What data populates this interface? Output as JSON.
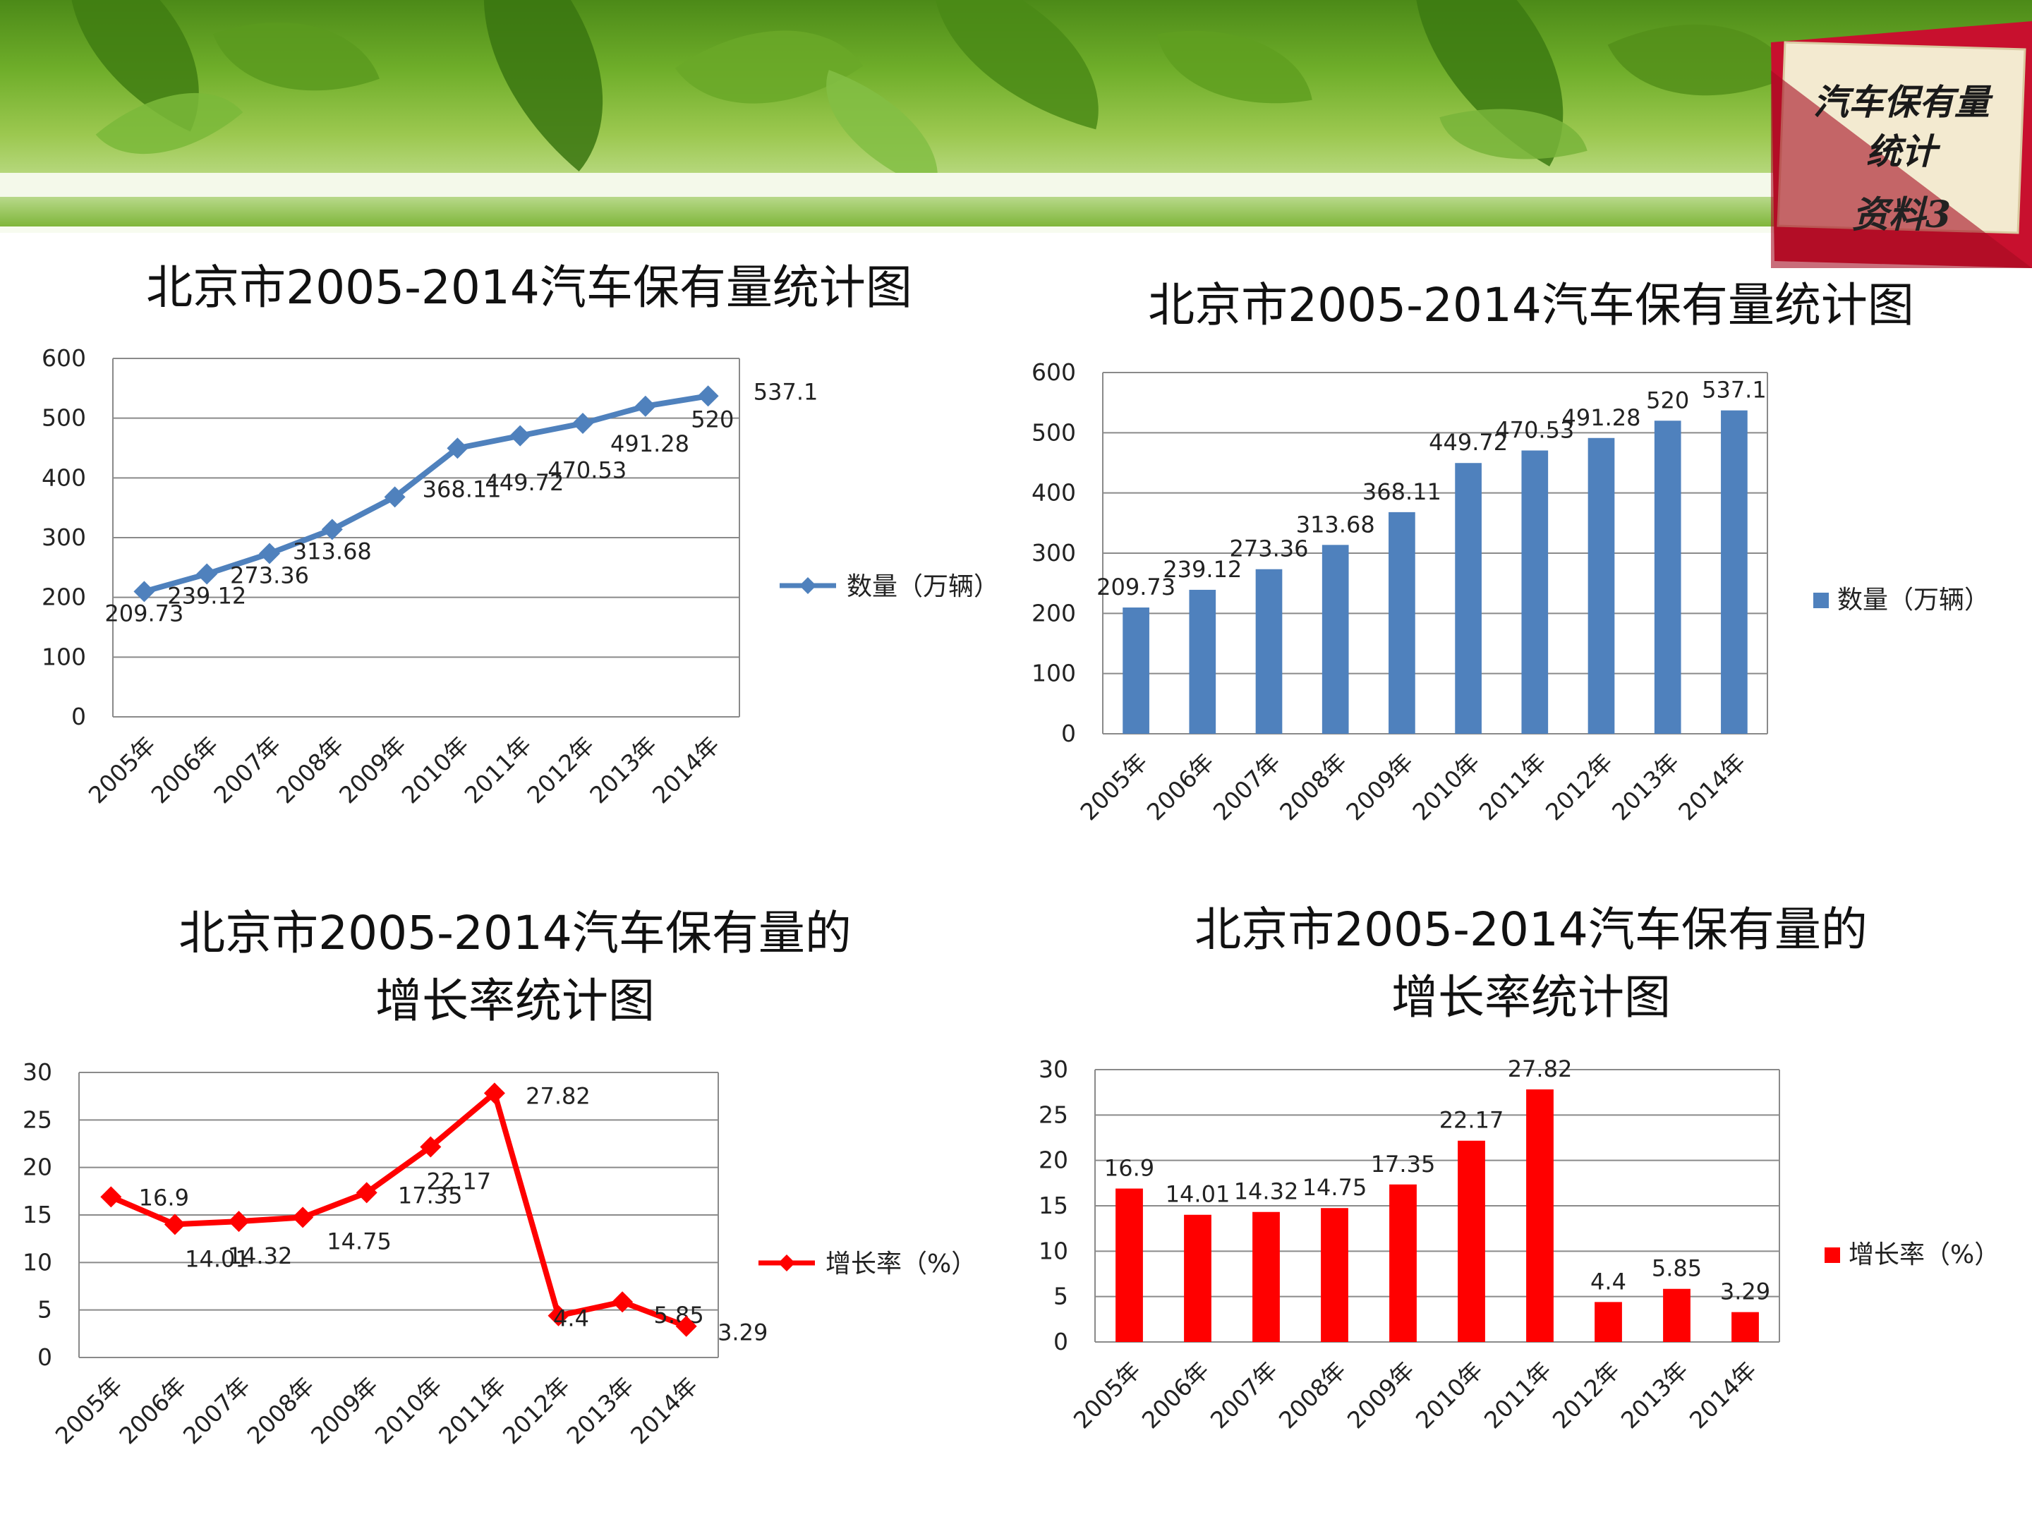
{
  "badge": {
    "line1": "汽车保有量",
    "line2": "统计",
    "line3": "资料3"
  },
  "chart_data": [
    {
      "type": "line",
      "title": "北京市2005-2014汽车保有量统计图",
      "categories": [
        "2005年",
        "2006年",
        "2007年",
        "2008年",
        "2009年",
        "2010年",
        "2011年",
        "2012年",
        "2013年",
        "2014年"
      ],
      "series": [
        {
          "name": "数量（万辆）",
          "values": [
            209.73,
            239.12,
            273.36,
            313.68,
            368.11,
            449.72,
            470.53,
            491.28,
            520,
            537.1
          ]
        }
      ],
      "data_labels": [
        "209.73",
        "239.12",
        "273.36",
        "313.68",
        "368.11",
        "449.72",
        "470.53",
        "491.28",
        "520",
        "537.1"
      ],
      "yticks": [
        "0",
        "100",
        "200",
        "300",
        "400",
        "500",
        "600"
      ],
      "ylim": [
        0,
        600
      ],
      "grid": true,
      "legend": "right",
      "color": "#4f81bd"
    },
    {
      "type": "bar",
      "title": "北京市2005-2014汽车保有量统计图",
      "categories": [
        "2005年",
        "2006年",
        "2007年",
        "2008年",
        "2009年",
        "2010年",
        "2011年",
        "2012年",
        "2013年",
        "2014年"
      ],
      "series": [
        {
          "name": "数量（万辆）",
          "values": [
            209.73,
            239.12,
            273.36,
            313.68,
            368.11,
            449.72,
            470.53,
            491.28,
            520,
            537.1
          ]
        }
      ],
      "data_labels": [
        "209.73",
        "239.12",
        "273.36",
        "313.68",
        "368.11",
        "449.72",
        "470.53",
        "491.28",
        "520",
        "537.1"
      ],
      "yticks": [
        "0",
        "100",
        "200",
        "300",
        "400",
        "500",
        "600"
      ],
      "ylim": [
        0,
        600
      ],
      "grid": true,
      "legend": "right",
      "color": "#4f81bd"
    },
    {
      "type": "line",
      "title": "北京市2005-2014汽车保有量的",
      "title2": "增长率统计图",
      "categories": [
        "2005年",
        "2006年",
        "2007年",
        "2008年",
        "2009年",
        "2010年",
        "2011年",
        "2012年",
        "2013年",
        "2014年"
      ],
      "series": [
        {
          "name": "增长率（%）",
          "values": [
            16.9,
            14.01,
            14.32,
            14.75,
            17.35,
            22.17,
            27.82,
            4.4,
            5.85,
            3.29
          ]
        }
      ],
      "data_labels": [
        "16.9",
        "14.01",
        "14.32",
        "14.75",
        "17.35",
        "22.17",
        "27.82",
        "4.4",
        "5.85",
        "3.29"
      ],
      "yticks": [
        "0",
        "5",
        "10",
        "15",
        "20",
        "25",
        "30"
      ],
      "ylim": [
        0,
        30
      ],
      "grid": true,
      "legend": "right",
      "color": "#ff0000"
    },
    {
      "type": "bar",
      "title": "北京市2005-2014汽车保有量的",
      "title2": "增长率统计图",
      "categories": [
        "2005年",
        "2006年",
        "2007年",
        "2008年",
        "2009年",
        "2010年",
        "2011年",
        "2012年",
        "2013年",
        "2014年"
      ],
      "series": [
        {
          "name": "增长率（%）",
          "values": [
            16.9,
            14.01,
            14.32,
            14.75,
            17.35,
            22.17,
            27.82,
            4.4,
            5.85,
            3.29
          ]
        }
      ],
      "data_labels": [
        "16.9",
        "14.01",
        "14.32",
        "14.75",
        "17.35",
        "22.17",
        "27.82",
        "4.4",
        "5.85",
        "3.29"
      ],
      "yticks": [
        "0",
        "5",
        "10",
        "15",
        "20",
        "25",
        "30"
      ],
      "ylim": [
        0,
        30
      ],
      "grid": true,
      "legend": "right",
      "color": "#ff0000"
    }
  ]
}
